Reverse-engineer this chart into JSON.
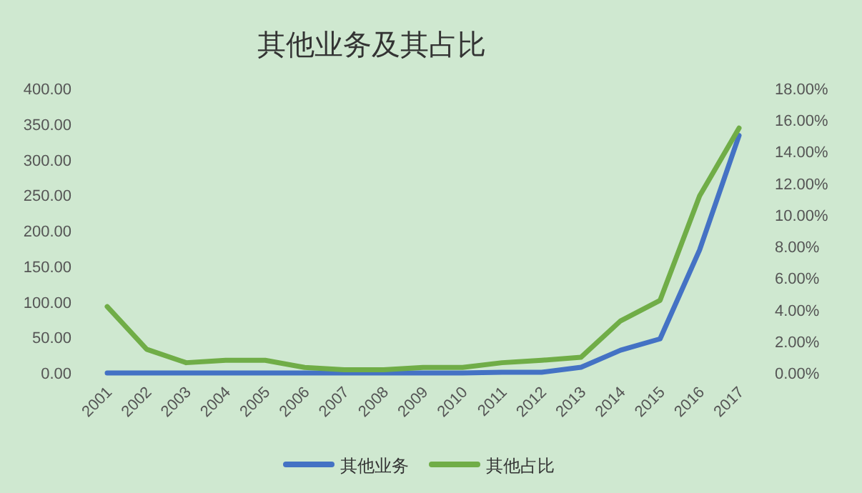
{
  "chart_data": {
    "type": "line",
    "title": "其他业务及其占比",
    "categories": [
      "2001",
      "2002",
      "2003",
      "2004",
      "2005",
      "2006",
      "2007",
      "2008",
      "2009",
      "2010",
      "2011",
      "2012",
      "2013",
      "2014",
      "2015",
      "2016",
      "2017"
    ],
    "series": [
      {
        "name": "其他业务",
        "color": "#4472c4",
        "values": [
          0,
          0,
          0,
          0,
          0,
          0,
          0,
          0,
          0,
          0,
          1,
          1,
          8,
          32,
          48,
          173,
          334
        ]
      },
      {
        "name": "其他占比",
        "color": "#70ad47",
        "axis": "y2",
        "values": [
          4.2,
          1.5,
          0.65,
          0.8,
          0.8,
          0.35,
          0.2,
          0.2,
          0.35,
          0.35,
          0.65,
          0.8,
          1.0,
          3.3,
          4.6,
          11.2,
          15.5
        ]
      }
    ],
    "ylim": [
      0,
      400
    ],
    "yticks": [
      {
        "value": 0,
        "label": "0.00"
      },
      {
        "value": 50,
        "label": "50.00"
      },
      {
        "value": 100,
        "label": "100.00"
      },
      {
        "value": 150,
        "label": "150.00"
      },
      {
        "value": 200,
        "label": "200.00"
      },
      {
        "value": 250,
        "label": "250.00"
      },
      {
        "value": 300,
        "label": "300.00"
      },
      {
        "value": 350,
        "label": "350.00"
      },
      {
        "value": 400,
        "label": "400.00"
      }
    ],
    "y2lim": [
      0,
      18
    ],
    "y2ticks": [
      {
        "value": 0,
        "label": "0.00%"
      },
      {
        "value": 2,
        "label": "2.00%"
      },
      {
        "value": 4,
        "label": "4.00%"
      },
      {
        "value": 6,
        "label": "6.00%"
      },
      {
        "value": 8,
        "label": "8.00%"
      },
      {
        "value": 10,
        "label": "10.00%"
      },
      {
        "value": 12,
        "label": "12.00%"
      },
      {
        "value": 14,
        "label": "14.00%"
      },
      {
        "value": 16,
        "label": "16.00%"
      },
      {
        "value": 18,
        "label": "18.00%"
      }
    ],
    "grid": false,
    "legend": "bottom",
    "line_style": "solid",
    "marker": "none"
  }
}
